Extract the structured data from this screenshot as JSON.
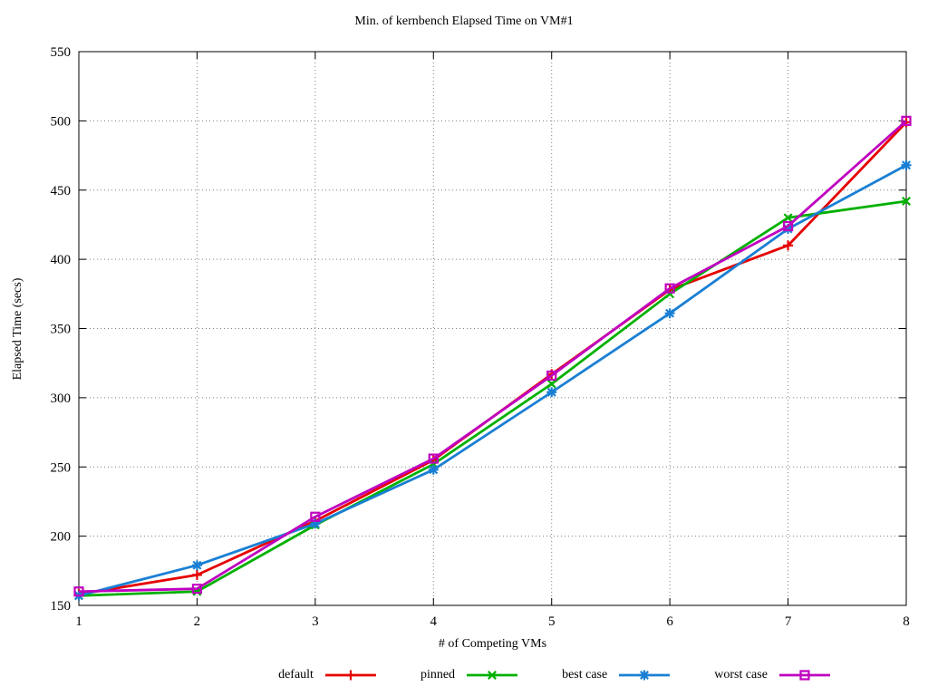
{
  "chart_data": {
    "type": "line",
    "title": "Min. of kernbench Elapsed Time on VM#1",
    "xlabel": "# of Competing VMs",
    "ylabel": "Elapsed Time (secs)",
    "x": [
      1,
      2,
      3,
      4,
      5,
      6,
      7,
      8
    ],
    "xlim": [
      1,
      8
    ],
    "ylim": [
      150,
      550
    ],
    "xticks": [
      1,
      2,
      3,
      4,
      5,
      6,
      7,
      8
    ],
    "yticks": [
      150,
      200,
      250,
      300,
      350,
      400,
      450,
      500,
      550
    ],
    "grid": true,
    "grid_color": "#7f7f7f",
    "axis_color": "#000000",
    "legend_position": "bottom-center",
    "series": [
      {
        "name": "default",
        "color": "#e60000",
        "marker": "plus",
        "values": [
          158,
          172,
          211,
          255,
          317,
          378,
          410,
          499
        ]
      },
      {
        "name": "pinned",
        "color": "#00b000",
        "marker": "x",
        "values": [
          157,
          160,
          208,
          252,
          310,
          375,
          430,
          442
        ]
      },
      {
        "name": "best case",
        "color": "#1a7fd4",
        "marker": "asterisk",
        "values": [
          157,
          179,
          209,
          248,
          304,
          361,
          422,
          468
        ]
      },
      {
        "name": "worst case",
        "color": "#bf00bf",
        "marker": "square",
        "values": [
          160,
          162,
          214,
          256,
          316,
          379,
          424,
          500
        ]
      }
    ]
  }
}
